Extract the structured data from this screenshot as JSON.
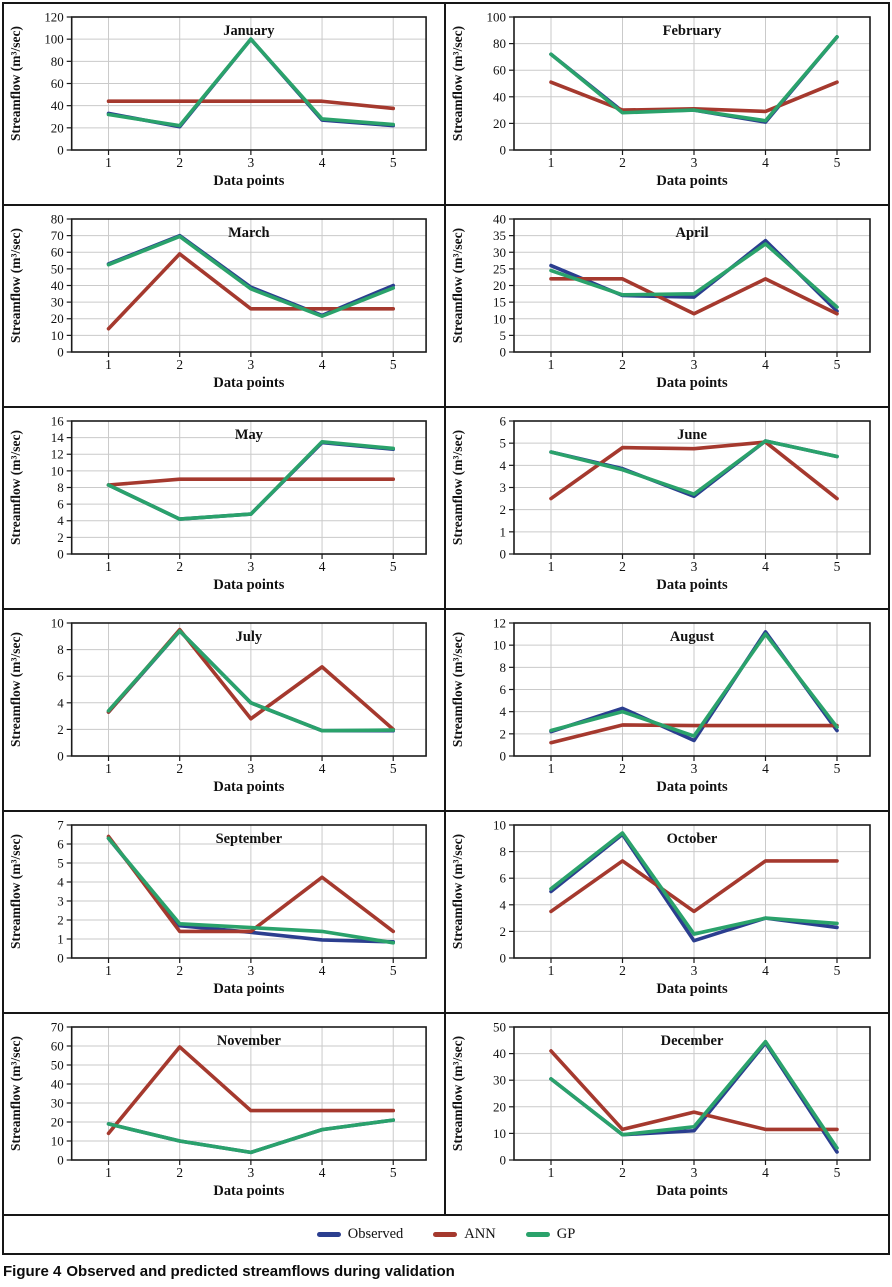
{
  "caption": {
    "prefix": "Figure 4",
    "text": "Observed and predicted streamflows during validation"
  },
  "legend": {
    "items": [
      {
        "label": "Observed",
        "color": "#2b3e8f"
      },
      {
        "label": "ANN",
        "color": "#a5392e"
      },
      {
        "label": "GP",
        "color": "#2aa26b"
      }
    ]
  },
  "styles": {
    "grid_color": "#cacaca",
    "frame_color": "#1b1b1b",
    "text_color": "#111111"
  },
  "chart_data": [
    {
      "type": "line",
      "title": "January",
      "xlabel": "Data points",
      "ylabel": "Streamflow (m³/sec)",
      "x": [
        1,
        2,
        3,
        4,
        5
      ],
      "ylim": [
        0,
        120
      ],
      "ytick_step": 20,
      "grid": true,
      "series": [
        {
          "name": "Observed",
          "values": [
            33,
            21,
            100,
            27,
            22
          ]
        },
        {
          "name": "ANN",
          "values": [
            44,
            44,
            44,
            44,
            37.5
          ]
        },
        {
          "name": "GP",
          "values": [
            32,
            22,
            100,
            28,
            23
          ]
        }
      ]
    },
    {
      "type": "line",
      "title": "February",
      "xlabel": "Data points",
      "ylabel": "Streamflow (m³/sec)",
      "x": [
        1,
        2,
        3,
        4,
        5
      ],
      "ylim": [
        0,
        100
      ],
      "ytick_step": 20,
      "grid": true,
      "series": [
        {
          "name": "Observed",
          "values": [
            72,
            29,
            30,
            21,
            85
          ]
        },
        {
          "name": "ANN",
          "values": [
            51,
            30,
            31,
            29,
            51
          ]
        },
        {
          "name": "GP",
          "values": [
            72,
            28,
            30,
            22,
            85
          ]
        }
      ]
    },
    {
      "type": "line",
      "title": "March",
      "xlabel": "Data points",
      "ylabel": "Streamflow (m³/sec)",
      "x": [
        1,
        2,
        3,
        4,
        5
      ],
      "ylim": [
        0,
        80
      ],
      "ytick_step": 10,
      "grid": true,
      "series": [
        {
          "name": "Observed",
          "values": [
            53,
            70,
            39,
            22,
            40
          ]
        },
        {
          "name": "ANN",
          "values": [
            14,
            59,
            26,
            26,
            26
          ]
        },
        {
          "name": "GP",
          "values": [
            52.5,
            69.5,
            38,
            21.5,
            38.5
          ]
        }
      ]
    },
    {
      "type": "line",
      "title": "April",
      "xlabel": "Data points",
      "ylabel": "Streamflow (m³/sec)",
      "x": [
        1,
        2,
        3,
        4,
        5
      ],
      "ylim": [
        0,
        40
      ],
      "ytick_step": 5,
      "grid": true,
      "series": [
        {
          "name": "Observed",
          "values": [
            26,
            17,
            16.5,
            33.5,
            12.3
          ]
        },
        {
          "name": "ANN",
          "values": [
            22,
            22,
            11.5,
            22,
            11.5
          ]
        },
        {
          "name": "GP",
          "values": [
            24.5,
            17.2,
            17.5,
            32.5,
            13.5
          ]
        }
      ]
    },
    {
      "type": "line",
      "title": "May",
      "xlabel": "Data points",
      "ylabel": "Streamflow (m³/sec)",
      "x": [
        1,
        2,
        3,
        4,
        5
      ],
      "ylim": [
        0,
        16
      ],
      "ytick_step": 2,
      "grid": true,
      "series": [
        {
          "name": "Observed",
          "values": [
            8.3,
            4.2,
            4.8,
            13.4,
            12.6
          ]
        },
        {
          "name": "ANN",
          "values": [
            8.3,
            9,
            9,
            9,
            9
          ]
        },
        {
          "name": "GP",
          "values": [
            8.3,
            4.2,
            4.8,
            13.5,
            12.7
          ]
        }
      ]
    },
    {
      "type": "line",
      "title": "June",
      "xlabel": "Data points",
      "ylabel": "Streamflow (m³/sec)",
      "x": [
        1,
        2,
        3,
        4,
        5
      ],
      "ylim": [
        0,
        6
      ],
      "ytick_step": 1,
      "grid": true,
      "series": [
        {
          "name": "Observed",
          "values": [
            4.6,
            3.85,
            2.6,
            5.1,
            4.4
          ]
        },
        {
          "name": "ANN",
          "values": [
            2.5,
            4.8,
            4.75,
            5.05,
            2.5
          ]
        },
        {
          "name": "GP",
          "values": [
            4.6,
            3.8,
            2.7,
            5.1,
            4.4
          ]
        }
      ]
    },
    {
      "type": "line",
      "title": "July",
      "xlabel": "Data points",
      "ylabel": "Streamflow (m³/sec)",
      "x": [
        1,
        2,
        3,
        4,
        5
      ],
      "ylim": [
        0,
        10
      ],
      "ytick_step": 2,
      "grid": true,
      "series": [
        {
          "name": "Observed",
          "values": [
            3.3,
            9.4,
            4.0,
            1.9,
            1.9
          ]
        },
        {
          "name": "ANN",
          "values": [
            3.3,
            9.5,
            2.8,
            6.7,
            2.0
          ]
        },
        {
          "name": "GP",
          "values": [
            3.4,
            9.4,
            4.0,
            1.9,
            1.95
          ]
        }
      ]
    },
    {
      "type": "line",
      "title": "August",
      "xlabel": "Data points",
      "ylabel": "Streamflow (m³/sec)",
      "x": [
        1,
        2,
        3,
        4,
        5
      ],
      "ylim": [
        0,
        12
      ],
      "ytick_step": 2,
      "grid": true,
      "series": [
        {
          "name": "Observed",
          "values": [
            2.2,
            4.3,
            1.4,
            11.2,
            2.3
          ]
        },
        {
          "name": "ANN",
          "values": [
            1.2,
            2.8,
            2.75,
            2.75,
            2.75
          ]
        },
        {
          "name": "GP",
          "values": [
            2.3,
            4.0,
            1.8,
            11.0,
            2.6
          ]
        }
      ]
    },
    {
      "type": "line",
      "title": "September",
      "xlabel": "Data points",
      "ylabel": "Streamflow (m³/sec)",
      "x": [
        1,
        2,
        3,
        4,
        5
      ],
      "ylim": [
        0,
        7
      ],
      "ytick_step": 1,
      "grid": true,
      "series": [
        {
          "name": "Observed",
          "values": [
            6.3,
            1.7,
            1.35,
            0.95,
            0.85
          ]
        },
        {
          "name": "ANN",
          "values": [
            6.4,
            1.4,
            1.4,
            4.25,
            1.4
          ]
        },
        {
          "name": "GP",
          "values": [
            6.3,
            1.8,
            1.6,
            1.4,
            0.8
          ]
        }
      ]
    },
    {
      "type": "line",
      "title": "October",
      "xlabel": "Data points",
      "ylabel": "Streamflow (m³/sec)",
      "x": [
        1,
        2,
        3,
        4,
        5
      ],
      "ylim": [
        0,
        10
      ],
      "ytick_step": 2,
      "grid": true,
      "series": [
        {
          "name": "Observed",
          "values": [
            5.0,
            9.3,
            1.3,
            3.0,
            2.3
          ]
        },
        {
          "name": "ANN",
          "values": [
            3.5,
            7.3,
            3.5,
            7.3,
            7.3
          ]
        },
        {
          "name": "GP",
          "values": [
            5.2,
            9.4,
            1.8,
            3.0,
            2.6
          ]
        }
      ]
    },
    {
      "type": "line",
      "title": "November",
      "xlabel": "Data points",
      "ylabel": "Streamflow (m³/sec)",
      "x": [
        1,
        2,
        3,
        4,
        5
      ],
      "ylim": [
        0,
        70
      ],
      "ytick_step": 10,
      "grid": true,
      "series": [
        {
          "name": "Observed",
          "values": [
            19,
            10,
            4,
            16,
            21
          ]
        },
        {
          "name": "ANN",
          "values": [
            14,
            59.5,
            26,
            26,
            26
          ]
        },
        {
          "name": "GP",
          "values": [
            19,
            10,
            4,
            16,
            21
          ]
        }
      ]
    },
    {
      "type": "line",
      "title": "December",
      "xlabel": "Data points",
      "ylabel": "Streamflow (m³/sec)",
      "x": [
        1,
        2,
        3,
        4,
        5
      ],
      "ylim": [
        0,
        50
      ],
      "ytick_step": 10,
      "grid": true,
      "series": [
        {
          "name": "Observed",
          "values": [
            30.5,
            9.5,
            11,
            44,
            3
          ]
        },
        {
          "name": "ANN",
          "values": [
            41,
            11.5,
            18,
            11.5,
            11.5
          ]
        },
        {
          "name": "GP",
          "values": [
            30.5,
            9.5,
            12.5,
            44.5,
            4.5
          ]
        }
      ]
    }
  ]
}
